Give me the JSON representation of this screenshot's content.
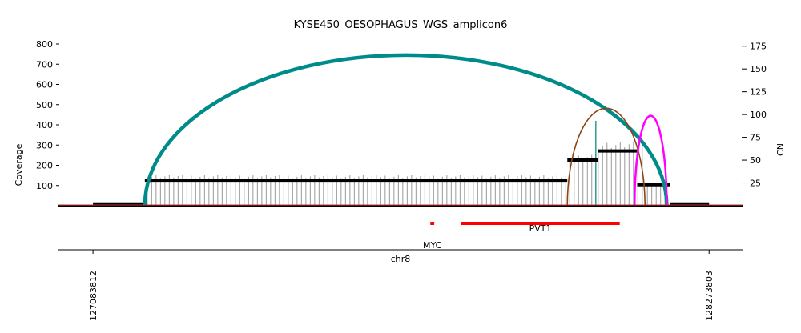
{
  "chart_data": {
    "type": "line",
    "title": "KYSE450_OESOPHAGUS_WGS_amplicon6",
    "xlabel": "chr8",
    "ylabel_left": "Coverage",
    "ylabel_right": "CN",
    "x_ticks": [
      127083812,
      128273803
    ],
    "x_tick_labels": [
      "127083812",
      "128273803"
    ],
    "xlim": [
      127015600,
      128340000
    ],
    "ylim_left": [
      0,
      800
    ],
    "ylim_right": [
      0,
      178
    ],
    "left_ticks": [
      100,
      200,
      300,
      400,
      500,
      600,
      700,
      800
    ],
    "right_ticks": [
      25,
      50,
      75,
      100,
      125,
      150,
      175
    ],
    "grid": false,
    "legend": "none",
    "colors": {
      "coverage": "#999999",
      "cn_segment": "#000000",
      "genes": "#ff0000",
      "baseline": "#cc3333",
      "arc_large": "#008b8b",
      "arc_brown": "#8b4513",
      "arc_magenta": "#ff00ff"
    },
    "genes": [
      {
        "name": "MYC",
        "start": 127735434,
        "end": 127742951
      },
      {
        "name": "PVT1",
        "start": 127794533,
        "end": 128101253
      }
    ],
    "cn_segments": [
      {
        "start": 127083812,
        "end": 127184000,
        "cn": 2
      },
      {
        "start": 127184000,
        "end": 128000000,
        "cn": 28
      },
      {
        "start": 128000000,
        "end": 128060000,
        "cn": 50
      },
      {
        "start": 128060000,
        "end": 128135000,
        "cn": 60
      },
      {
        "start": 128135000,
        "end": 128198000,
        "cn": 23
      },
      {
        "start": 128198000,
        "end": 128273803,
        "cn": 2
      }
    ],
    "coverage_samples": [
      {
        "start": 127184000,
        "end": 128000000,
        "value": 145
      },
      {
        "start": 128000000,
        "end": 128055000,
        "value": 240
      },
      {
        "start": 128055000,
        "end": 128150000,
        "value": 300
      },
      {
        "start": 128150000,
        "end": 128192000,
        "value": 110
      }
    ],
    "coverage_spike": {
      "position": 128055000,
      "value": 420
    },
    "breakpoint_arcs": [
      {
        "start": 127184000,
        "end": 128192000,
        "height": 745,
        "color": "#008b8b",
        "weight": "thick"
      },
      {
        "start": 128000000,
        "end": 128150000,
        "height": 482,
        "color": "#8b4513",
        "weight": "thin"
      },
      {
        "start": 128130000,
        "end": 128192000,
        "height": 445,
        "color": "#ff00ff",
        "weight": "medium"
      }
    ]
  }
}
